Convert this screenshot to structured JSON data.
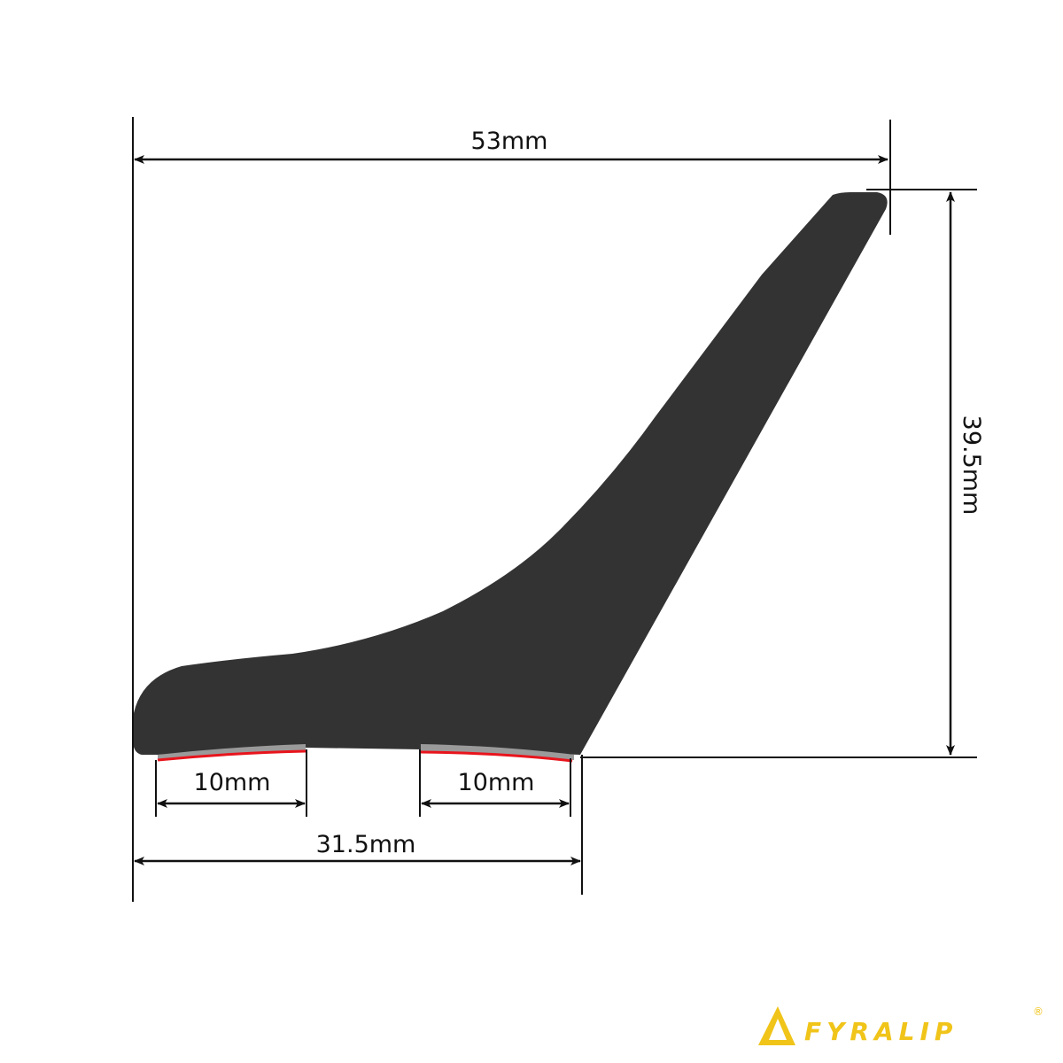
{
  "dimensions": {
    "width_top": "53mm",
    "height_right": "39.5mm",
    "tape_left": "10mm",
    "tape_right": "10mm",
    "base_width": "31.5mm"
  },
  "colors": {
    "profile": "#333333",
    "tape": "#9a9a9a",
    "tape_edge": "#e8141c",
    "lines": "#111111",
    "logo": "#f0c419"
  },
  "logo": {
    "text": "FYRALIP",
    "registered": "®"
  }
}
